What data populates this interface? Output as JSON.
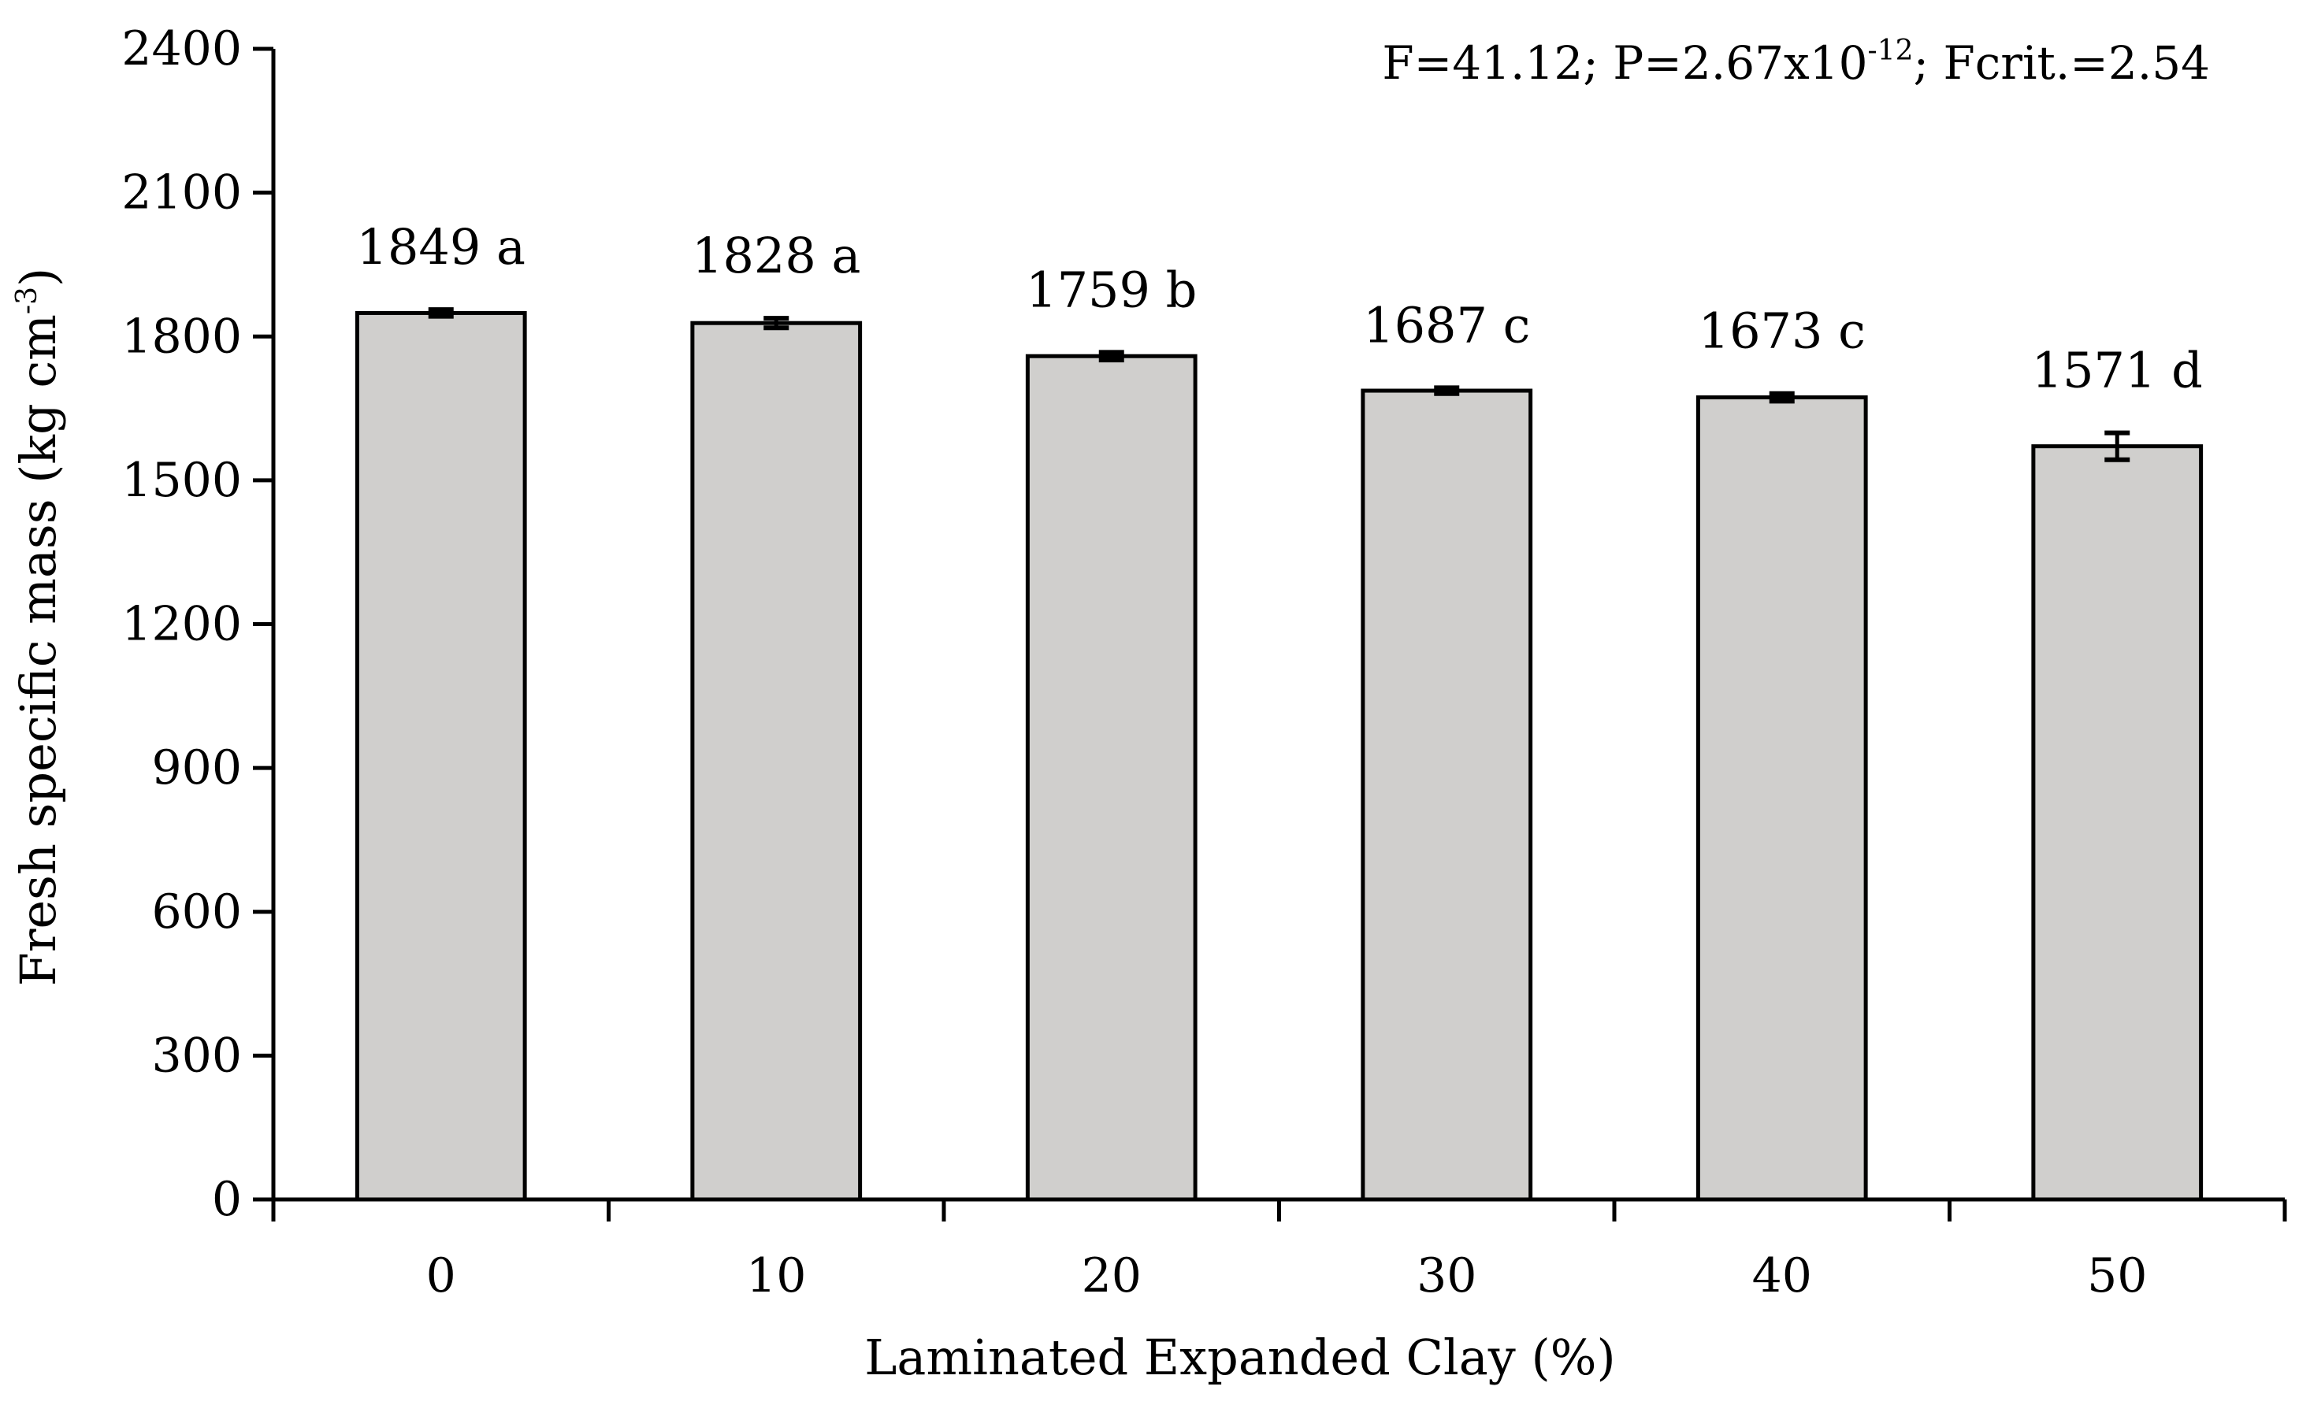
{
  "chart_data": {
    "type": "bar",
    "categories": [
      "0",
      "10",
      "20",
      "30",
      "40",
      "50"
    ],
    "values": [
      1849,
      1828,
      1759,
      1687,
      1673,
      1571
    ],
    "errors": [
      7,
      10,
      8,
      6,
      8,
      28
    ],
    "bar_labels": [
      "1849 a",
      "1828 a",
      "1759 b",
      "1687 c",
      "1673 c",
      "1571 d"
    ],
    "xlabel": "Laminated Expanded Clay (%)",
    "ylabel": {
      "main": "Fresh specific mass (kg cm",
      "superscript": "-3",
      "suffix": ")"
    },
    "ylim": [
      0,
      2400
    ],
    "yticks": [
      0,
      300,
      600,
      900,
      1200,
      1500,
      1800,
      2100,
      2400
    ],
    "annotation": {
      "part1": "F=41.12; P=2.67x10",
      "superscript": "-12",
      "part2": "; Fcrit.=2.54"
    },
    "grid": false,
    "legend": "none",
    "colors": {
      "bar_fill": "#d0cfcd",
      "bar_stroke": "#000000"
    }
  }
}
